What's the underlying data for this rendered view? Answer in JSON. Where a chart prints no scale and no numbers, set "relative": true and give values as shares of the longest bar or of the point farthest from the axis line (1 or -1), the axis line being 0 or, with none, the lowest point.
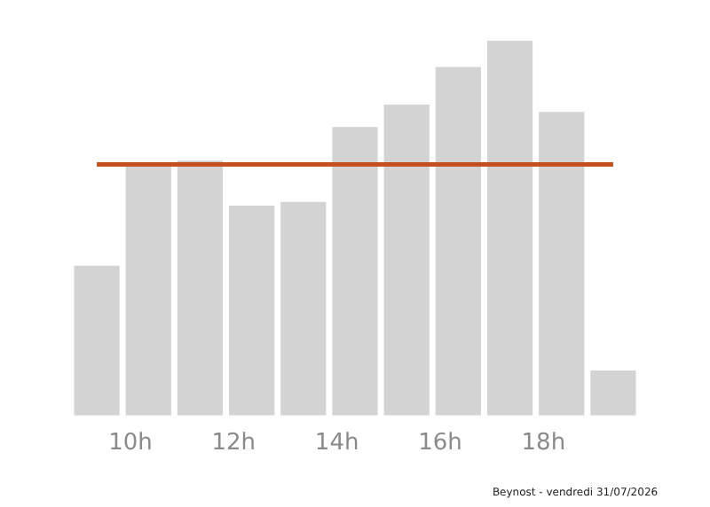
{
  "chart_data": {
    "type": "bar",
    "relative": true,
    "x": [
      9.35,
      10.35,
      11.35,
      12.35,
      13.35,
      14.35,
      15.35,
      16.35,
      17.35,
      18.35,
      19.35
    ],
    "values": [
      0.4,
      0.67,
      0.68,
      0.56,
      0.57,
      0.77,
      0.83,
      0.93,
      1,
      0.81,
      0.12
    ],
    "color": "#d3d3d3",
    "xlim": [
      8.85,
      19.85
    ],
    "xticks": [
      {
        "value": 10,
        "label": "10h"
      },
      {
        "value": 12,
        "label": "12h"
      },
      {
        "value": 14,
        "label": "14h"
      },
      {
        "value": 16,
        "label": "16h"
      },
      {
        "value": 18,
        "label": "18h"
      }
    ],
    "ref_lines": [
      {
        "axis": "y",
        "value": 0.67,
        "color": "#c4501f"
      }
    ],
    "annotations": [
      "Beynost - vendredi 31/07/2026"
    ],
    "grid": false,
    "legend": false
  }
}
